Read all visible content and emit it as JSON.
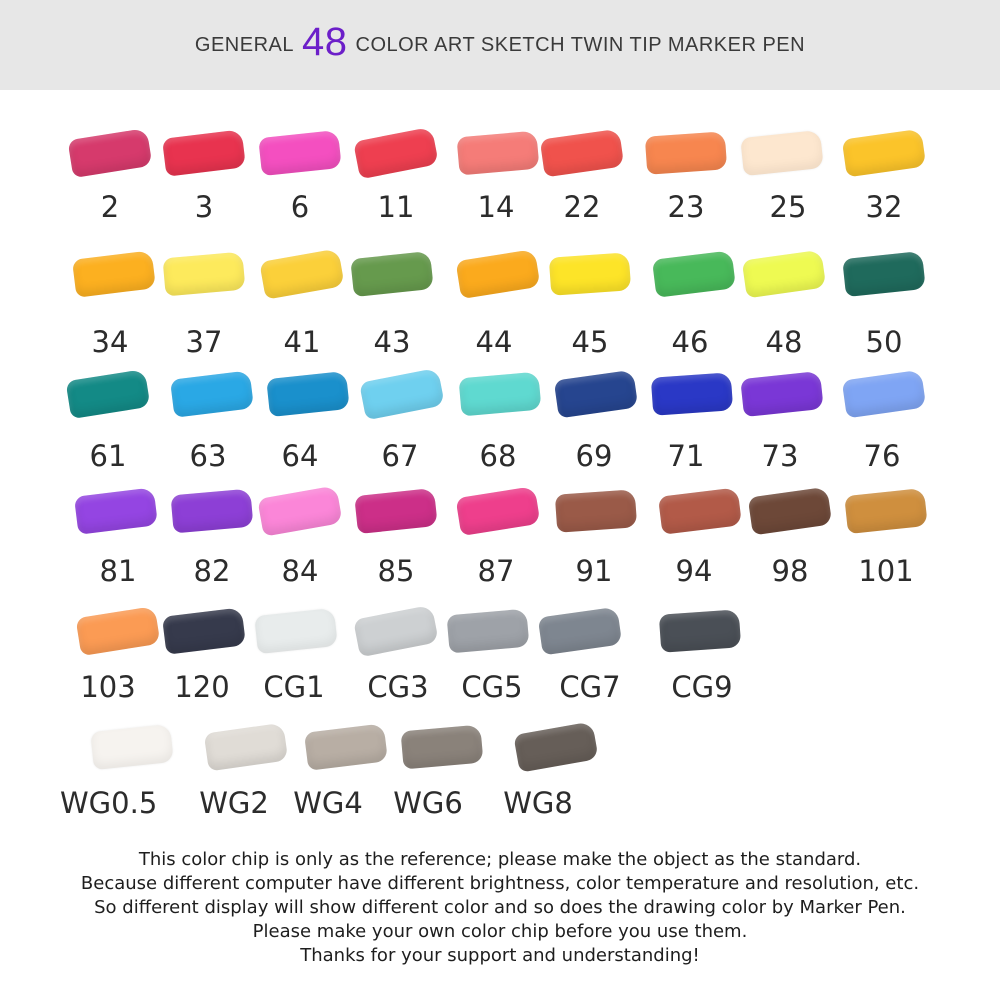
{
  "header": {
    "pre": "GENERAL",
    "number": "48",
    "post": "COLOR ART SKETCH TWIN TIP MARKER PEN"
  },
  "rows": [
    [
      {
        "label": "2",
        "color": "#d63a6c"
      },
      {
        "label": "3",
        "color": "#e8334f"
      },
      {
        "label": "6",
        "color": "#f44fc0"
      },
      {
        "label": "11",
        "color": "#ee3f50"
      },
      {
        "label": "14",
        "color": "#f57c78"
      },
      {
        "label": "22",
        "color": "#f0524c"
      },
      {
        "label": "23",
        "color": "#f7864f"
      },
      {
        "label": "25",
        "color": "#fde7cf"
      },
      {
        "label": "32",
        "color": "#fbc42a"
      }
    ],
    [
      {
        "label": "34",
        "color": "#fcb020"
      },
      {
        "label": "37",
        "color": "#fdea5c"
      },
      {
        "label": "41",
        "color": "#fbd03a"
      },
      {
        "label": "43",
        "color": "#669a4d"
      },
      {
        "label": "44",
        "color": "#fbaa1d"
      },
      {
        "label": "45",
        "color": "#fde428"
      },
      {
        "label": "46",
        "color": "#48b95a"
      },
      {
        "label": "48",
        "color": "#eefa52"
      },
      {
        "label": "50",
        "color": "#1f6a5c"
      }
    ],
    [
      {
        "label": "61",
        "color": "#138a86"
      },
      {
        "label": "63",
        "color": "#2aa8e5"
      },
      {
        "label": "64",
        "color": "#1a90cc"
      },
      {
        "label": "67",
        "color": "#6fd0ef"
      },
      {
        "label": "68",
        "color": "#5fd9d0"
      },
      {
        "label": "69",
        "color": "#26458f"
      },
      {
        "label": "71",
        "color": "#2a38c6"
      },
      {
        "label": "73",
        "color": "#7a37d6"
      },
      {
        "label": "76",
        "color": "#7fa5f4"
      }
    ],
    [
      {
        "label": "81",
        "color": "#9445e2"
      },
      {
        "label": "82",
        "color": "#8d3fd6"
      },
      {
        "label": "84",
        "color": "#fb86d8"
      },
      {
        "label": "85",
        "color": "#cc2f88"
      },
      {
        "label": "87",
        "color": "#ee3f8c"
      },
      {
        "label": "91",
        "color": "#9a5a48"
      },
      {
        "label": "94",
        "color": "#b25a48"
      },
      {
        "label": "98",
        "color": "#6d4838"
      },
      {
        "label": "101",
        "color": "#cf8f3e"
      }
    ],
    [
      {
        "label": "103",
        "color": "#fb9b54"
      },
      {
        "label": "120",
        "color": "#363a4c"
      },
      {
        "label": "CG1",
        "color": "#e8ecec"
      },
      {
        "label": "CG3",
        "color": "#cdd0d2"
      },
      {
        "label": "CG5",
        "color": "#9ea2a8"
      },
      {
        "label": "CG7",
        "color": "#7e8690"
      },
      {
        "label": "CG9",
        "color": "#4a4f56"
      }
    ],
    [
      {
        "label": "WG0.5",
        "color": "#f6f3ef"
      },
      {
        "label": "WG2",
        "color": "#e0dcd6"
      },
      {
        "label": "WG4",
        "color": "#b8aea4"
      },
      {
        "label": "WG6",
        "color": "#8a827a"
      },
      {
        "label": "WG8",
        "color": "#665e58"
      }
    ]
  ],
  "notes": [
    "This color chip is only as the reference; please make the object as the standard.",
    "Because different computer have different brightness, color temperature and resolution, etc.",
    "So different display will show different color and so does the drawing color by Marker Pen.",
    "Please make your own color chip before you use them.",
    "Thanks for your support and understanding!"
  ]
}
